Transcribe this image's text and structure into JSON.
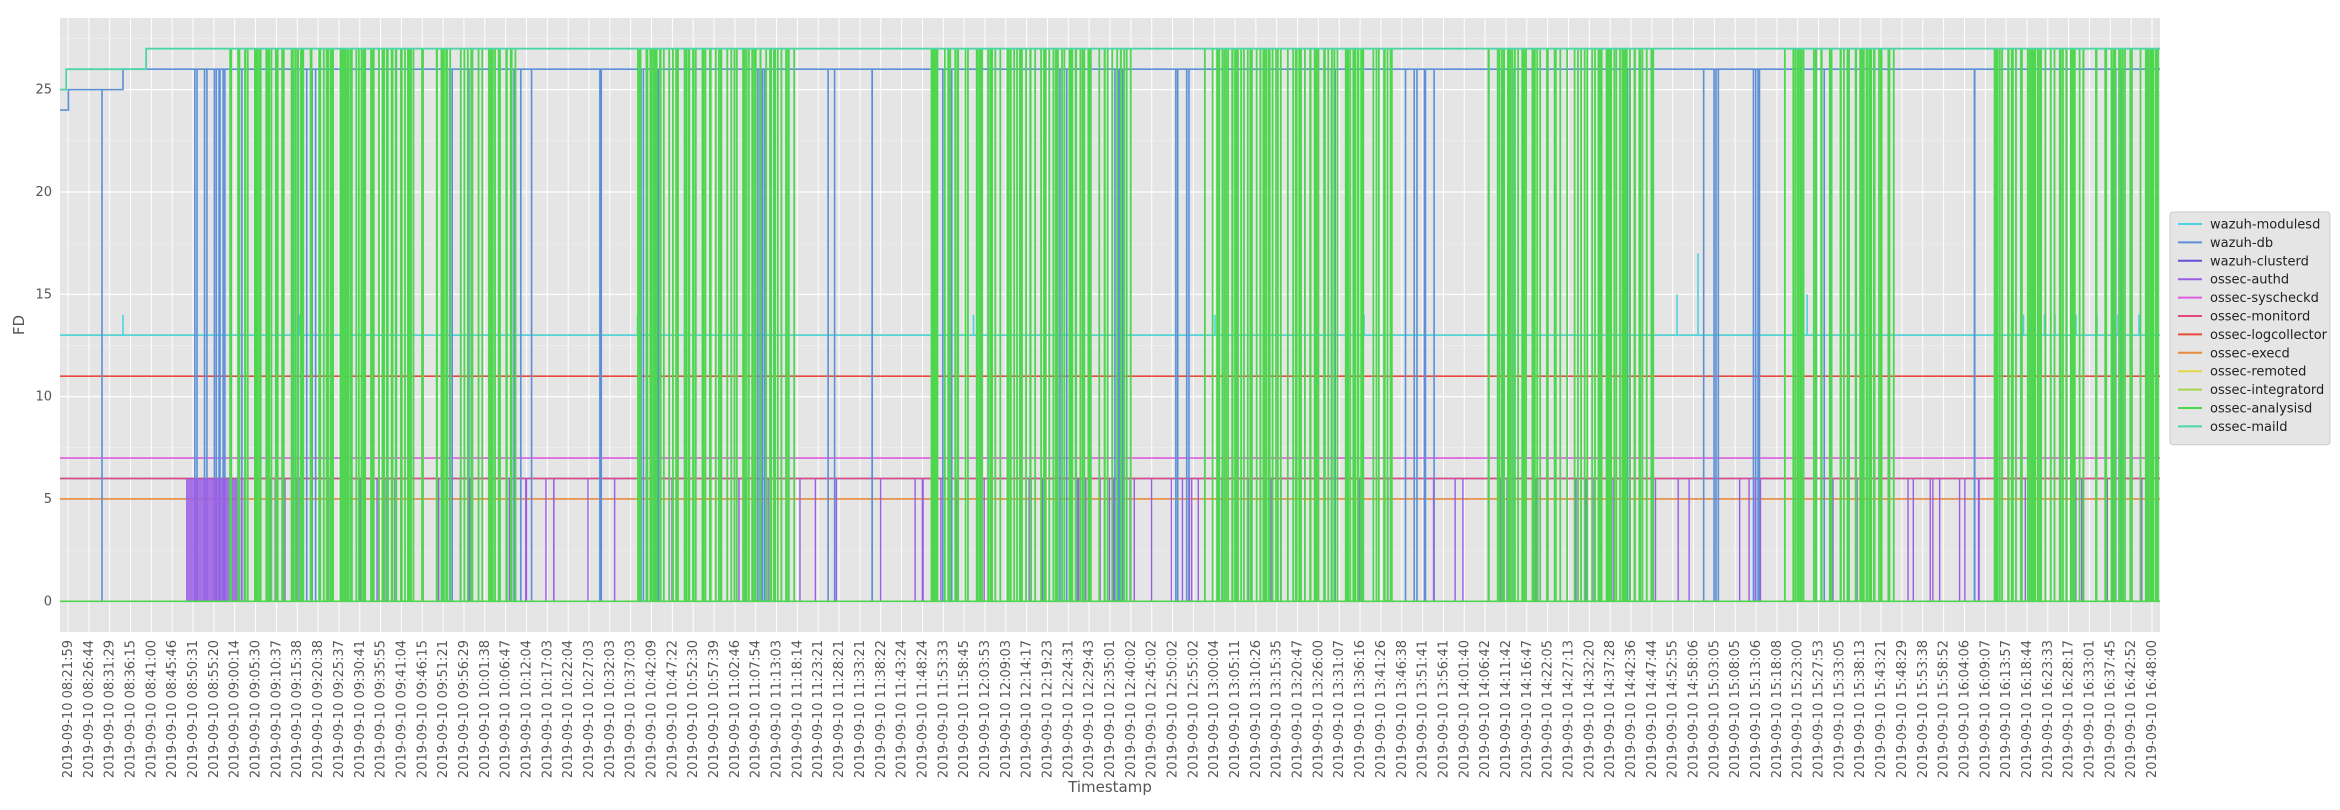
{
  "chart_data": {
    "type": "line",
    "title": "",
    "xlabel": "Timestamp",
    "ylabel": "FD",
    "ylim": [
      -1.5,
      28.5
    ],
    "yticks": [
      0,
      5,
      10,
      15,
      20,
      25
    ],
    "grid": true,
    "legend_position": "right",
    "x_tick_labels": [
      "2019-09-10 08:21:59",
      "2019-09-10 08:26:44",
      "2019-09-10 08:31:29",
      "2019-09-10 08:36:15",
      "2019-09-10 08:41:00",
      "2019-09-10 08:45:46",
      "2019-09-10 08:50:31",
      "2019-09-10 08:55:20",
      "2019-09-10 09:00:14",
      "2019-09-10 09:05:30",
      "2019-09-10 09:10:37",
      "2019-09-10 09:15:38",
      "2019-09-10 09:20:38",
      "2019-09-10 09:25:37",
      "2019-09-10 09:30:41",
      "2019-09-10 09:35:55",
      "2019-09-10 09:41:04",
      "2019-09-10 09:46:15",
      "2019-09-10 09:51:21",
      "2019-09-10 09:56:29",
      "2019-09-10 10:01:38",
      "2019-09-10 10:06:47",
      "2019-09-10 10:12:04",
      "2019-09-10 10:17:03",
      "2019-09-10 10:22:04",
      "2019-09-10 10:27:03",
      "2019-09-10 10:32:03",
      "2019-09-10 10:37:03",
      "2019-09-10 10:42:09",
      "2019-09-10 10:47:22",
      "2019-09-10 10:52:30",
      "2019-09-10 10:57:39",
      "2019-09-10 11:02:46",
      "2019-09-10 11:07:54",
      "2019-09-10 11:13:03",
      "2019-09-10 11:18:14",
      "2019-09-10 11:23:21",
      "2019-09-10 11:28:21",
      "2019-09-10 11:33:21",
      "2019-09-10 11:38:22",
      "2019-09-10 11:43:24",
      "2019-09-10 11:48:24",
      "2019-09-10 11:53:33",
      "2019-09-10 11:58:45",
      "2019-09-10 12:03:53",
      "2019-09-10 12:09:03",
      "2019-09-10 12:14:17",
      "2019-09-10 12:19:23",
      "2019-09-10 12:24:31",
      "2019-09-10 12:29:43",
      "2019-09-10 12:35:01",
      "2019-09-10 12:40:02",
      "2019-09-10 12:45:02",
      "2019-09-10 12:50:02",
      "2019-09-10 12:55:02",
      "2019-09-10 13:00:04",
      "2019-09-10 13:05:11",
      "2019-09-10 13:10:26",
      "2019-09-10 13:15:35",
      "2019-09-10 13:20:47",
      "2019-09-10 13:26:00",
      "2019-09-10 13:31:07",
      "2019-09-10 13:36:16",
      "2019-09-10 13:41:26",
      "2019-09-10 13:46:38",
      "2019-09-10 13:51:41",
      "2019-09-10 13:56:41",
      "2019-09-10 14:01:40",
      "2019-09-10 14:06:42",
      "2019-09-10 14:11:42",
      "2019-09-10 14:16:47",
      "2019-09-10 14:22:05",
      "2019-09-10 14:27:13",
      "2019-09-10 14:32:20",
      "2019-09-10 14:37:28",
      "2019-09-10 14:42:36",
      "2019-09-10 14:47:44",
      "2019-09-10 14:52:55",
      "2019-09-10 14:58:06",
      "2019-09-10 15:03:05",
      "2019-09-10 15:08:05",
      "2019-09-10 15:13:06",
      "2019-09-10 15:18:08",
      "2019-09-10 15:23:00",
      "2019-09-10 15:27:53",
      "2019-09-10 15:33:05",
      "2019-09-10 15:38:13",
      "2019-09-10 15:43:21",
      "2019-09-10 15:48:29",
      "2019-09-10 15:53:38",
      "2019-09-10 15:58:52",
      "2019-09-10 16:04:06",
      "2019-09-10 16:09:07",
      "2019-09-10 16:13:57",
      "2019-09-10 16:18:44",
      "2019-09-10 16:23:33",
      "2019-09-10 16:28:17",
      "2019-09-10 16:33:01",
      "2019-09-10 16:37:45",
      "2019-09-10 16:42:52",
      "2019-09-10 16:48:00"
    ],
    "series": [
      {
        "name": "wazuh-modulesd",
        "color": "#4fd3e0",
        "baseline": 13,
        "spikes": [
          [
            3.0,
            14
          ],
          [
            11.4,
            14
          ],
          [
            27.5,
            14
          ],
          [
            43.5,
            14
          ],
          [
            55.0,
            14
          ],
          [
            62.1,
            14
          ],
          [
            69.0,
            14
          ],
          [
            77.0,
            15
          ],
          [
            78.0,
            17
          ],
          [
            83.0,
            16
          ],
          [
            83.2,
            15
          ],
          [
            93.0,
            14
          ],
          [
            93.5,
            14
          ],
          [
            94.0,
            14
          ],
          [
            94.5,
            14
          ],
          [
            95.0,
            14
          ],
          [
            96.0,
            14
          ],
          [
            97.0,
            14
          ],
          [
            98.0,
            14
          ],
          [
            99.0,
            14
          ]
        ]
      },
      {
        "name": "wazuh-db",
        "color": "#5b8fd8",
        "segments": [
          [
            0,
            24
          ],
          [
            0.4,
            25
          ],
          [
            3.0,
            26
          ],
          [
            6.2,
            26
          ],
          [
            100,
            26
          ]
        ],
        "drops": [
          [
            6.2,
            9.0,
            0
          ],
          [
            11.0,
            12.5,
            0
          ],
          [
            13.5,
            14.2,
            0
          ],
          [
            18.5,
            19.5,
            0
          ],
          [
            21.5,
            22.5,
            0
          ],
          [
            25.5,
            26.0,
            0
          ],
          [
            27.5,
            28.5,
            0
          ],
          [
            33.0,
            34.0,
            0
          ],
          [
            36.5,
            37.0,
            0
          ],
          [
            38.5,
            39.0,
            0
          ],
          [
            42.0,
            42.5,
            0
          ],
          [
            47.5,
            48.0,
            0
          ],
          [
            50.0,
            51.0,
            0
          ],
          [
            53.0,
            54.0,
            0
          ],
          [
            60.5,
            61.0,
            0
          ],
          [
            64.0,
            65.5,
            0
          ],
          [
            68.0,
            69.5,
            0
          ],
          [
            74.5,
            75.5,
            0
          ],
          [
            78.0,
            79.0,
            0
          ],
          [
            80.0,
            81.0,
            0
          ],
          [
            84.0,
            84.5,
            0
          ],
          [
            91.0,
            91.5,
            0
          ],
          [
            97.5,
            98.5,
            0
          ]
        ],
        "drop_to_zero": [
          [
            2.0,
            0
          ]
        ]
      },
      {
        "name": "wazuh-clusterd",
        "color": "#6a4fd6",
        "baseline": 6
      },
      {
        "name": "ossec-authd",
        "color": "#9b5de5",
        "baseline": 6,
        "block": [
          6.0,
          8.5,
          0
        ]
      },
      {
        "name": "ossec-syscheckd",
        "color": "#e05ce0",
        "baseline": 7
      },
      {
        "name": "ossec-monitord",
        "color": "#e04b7a",
        "baseline": 6
      },
      {
        "name": "ossec-logcollector",
        "color": "#e84a3c",
        "baseline": 11
      },
      {
        "name": "ossec-execd",
        "color": "#e88a3c",
        "baseline": 5
      },
      {
        "name": "ossec-remoted",
        "color": "#e0d84a",
        "baseline": 13
      },
      {
        "name": "ossec-integratord",
        "color": "#a6d64f",
        "baseline": 13
      },
      {
        "name": "ossec-analysisd",
        "color": "#4fd650",
        "baseline": 0,
        "active_bands": [
          [
            8.1,
            22.0
          ],
          [
            27.5,
            35.0
          ],
          [
            41.5,
            51.0
          ],
          [
            54.5,
            63.5
          ],
          [
            68.0,
            76.0
          ],
          [
            82.0,
            87.5
          ],
          [
            92.0,
            100
          ]
        ]
      },
      {
        "name": "ossec-maild",
        "color": "#4fd6a6",
        "segments": [
          [
            0,
            25
          ],
          [
            0.3,
            26
          ],
          [
            4.1,
            27
          ],
          [
            100,
            27
          ]
        ]
      }
    ]
  }
}
